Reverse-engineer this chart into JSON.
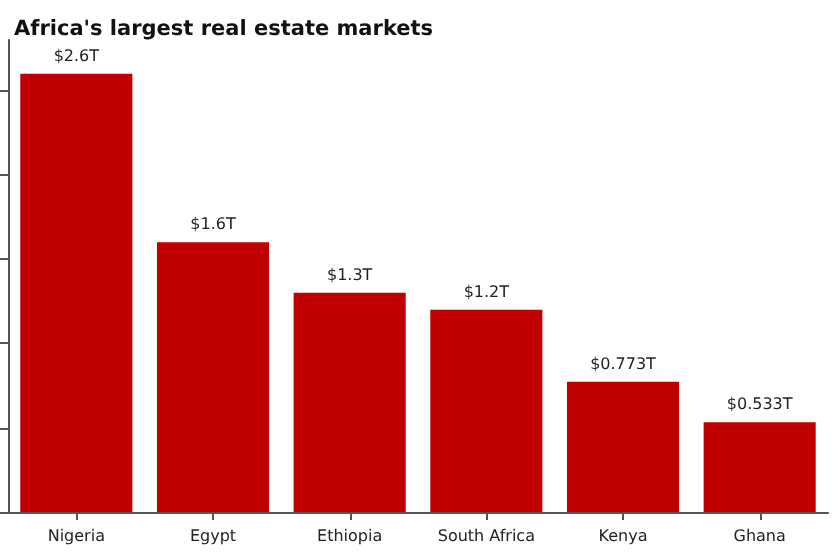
{
  "chart_data": {
    "type": "bar",
    "title": "Africa's largest real estate markets",
    "categories": [
      "Nigeria",
      "Egypt",
      "Ethiopia",
      "South Africa",
      "Kenya",
      "Ghana"
    ],
    "values": [
      2.6,
      1.6,
      1.3,
      1.2,
      0.773,
      0.533
    ],
    "value_labels": [
      "$2.6T",
      "$1.6T",
      "$1.3T",
      "$1.2T",
      "$0.773T",
      "$0.533T"
    ],
    "color": "#c00000",
    "ylim": [
      0,
      2.8
    ],
    "yticks": [
      {
        "value": 0,
        "label": null
      },
      {
        "value": 0.5,
        "label": null
      },
      {
        "value": 1,
        "label": null
      },
      {
        "value": 1.5,
        "label": null
      },
      {
        "value": 2,
        "label": null
      },
      {
        "value": 2.5,
        "label": null
      }
    ],
    "tick_labels": "x",
    "grid": false
  }
}
